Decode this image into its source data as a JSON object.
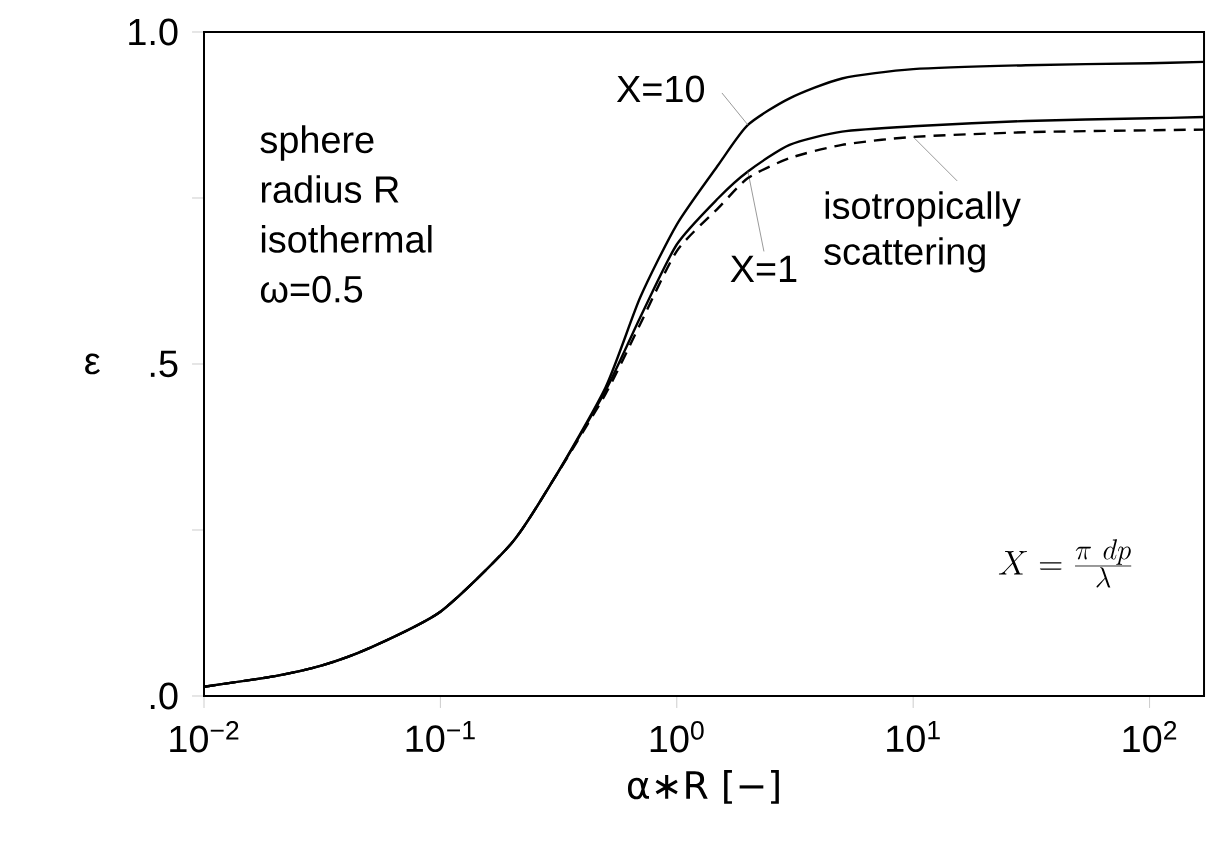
{
  "chart_data": {
    "type": "line",
    "xlabel": "α∗R [−]",
    "ylabel": "ε",
    "log": "x",
    "xlim": [
      0.01,
      170
    ],
    "ylim": [
      0,
      1
    ],
    "xticks": [
      {
        "value": 0.01,
        "label": "10$^{−2}$"
      },
      {
        "value": 0.1,
        "label": "10$^{−1}$"
      },
      {
        "value": 1,
        "label": "10$^{0}$"
      },
      {
        "value": 10,
        "label": "10$^{1}$"
      },
      {
        "value": 100,
        "label": "10$^{2}$"
      }
    ],
    "yticks": [
      {
        "value": 0,
        "label": ".0"
      },
      {
        "value": 0.25,
        "label": null
      },
      {
        "value": 0.5,
        "label": ".5"
      },
      {
        "value": 0.75,
        "label": null
      },
      {
        "value": 1,
        "label": "1.0"
      }
    ],
    "x": [
      0.01,
      0.02,
      0.0316,
      0.05,
      0.1,
      0.2,
      0.3,
      0.5,
      0.7,
      1,
      1.5,
      2,
      3,
      5,
      10,
      30,
      100,
      170
    ],
    "series": [
      {
        "name": "X=10",
        "color": "#000000",
        "line_style": "solid",
        "values": [
          0.014,
          0.03,
          0.046,
          0.072,
          0.127,
          0.23,
          0.325,
          0.465,
          0.6,
          0.71,
          0.8,
          0.86,
          0.9,
          0.93,
          0.944,
          0.95,
          0.953,
          0.955
        ]
      },
      {
        "name": "X=1",
        "color": "#000000",
        "line_style": "solid",
        "values": [
          0.014,
          0.03,
          0.046,
          0.072,
          0.127,
          0.23,
          0.325,
          0.46,
          0.57,
          0.68,
          0.75,
          0.79,
          0.83,
          0.85,
          0.858,
          0.866,
          0.87,
          0.872
        ]
      },
      {
        "name": "isotropically scattering",
        "color": "#000000",
        "line_style": "dashed",
        "values": [
          0.014,
          0.03,
          0.046,
          0.072,
          0.127,
          0.23,
          0.325,
          0.455,
          0.56,
          0.67,
          0.735,
          0.78,
          0.81,
          0.83,
          0.842,
          0.849,
          0.852,
          0.853
        ]
      }
    ],
    "annotations": [
      "sphere",
      "radius R",
      "isothermal",
      "ω=0.5",
      "X={\\pi\\ dp \\over \\lambda}"
    ],
    "grid": false
  }
}
